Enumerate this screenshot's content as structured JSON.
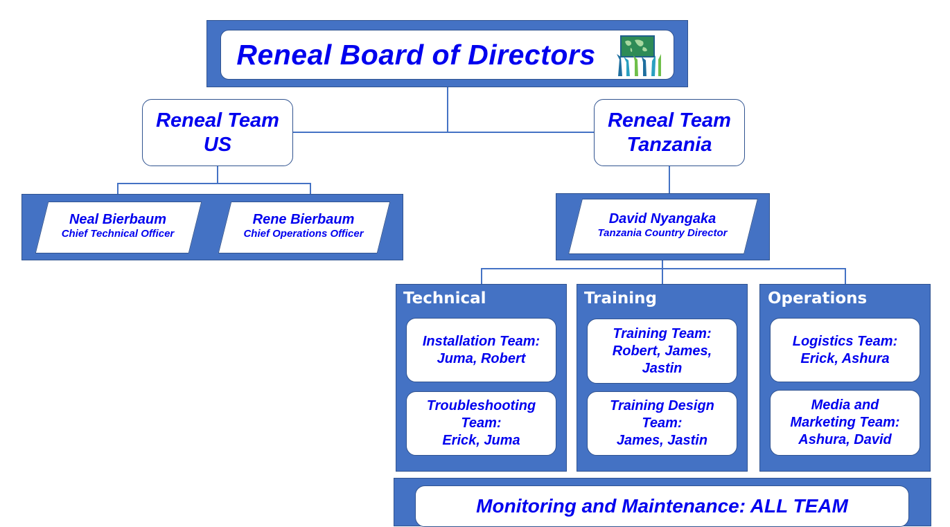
{
  "board": {
    "title": "Reneal Board of Directors",
    "logo_icon": "world-map-hands-icon"
  },
  "teams": {
    "us": {
      "label": "Reneal Team\nUS"
    },
    "tanzania": {
      "label": "Reneal Team\nTanzania"
    }
  },
  "us_people": [
    {
      "name": "Neal Bierbaum",
      "role": "Chief Technical Officer"
    },
    {
      "name": "Rene Bierbaum",
      "role": "Chief Operations Officer"
    }
  ],
  "tz_director": {
    "name": "David Nyangaka",
    "role": "Tanzania Country Director"
  },
  "departments": [
    {
      "title": "Technical",
      "teams": [
        "Installation Team:\nJuma, Robert",
        "Troubleshooting\nTeam:\nErick, Juma"
      ]
    },
    {
      "title": "Training",
      "teams": [
        "Training Team:\nRobert, James,\nJastin",
        "Training Design\nTeam:\nJames, Jastin"
      ]
    },
    {
      "title": "Operations",
      "teams": [
        "Logistics Team:\nErick, Ashura",
        "Media and\nMarketing Team:\nAshura, David"
      ]
    }
  ],
  "monitoring": {
    "label": "Monitoring and Maintenance: ALL TEAM"
  },
  "colors": {
    "box_blue": "#4472c4",
    "text_blue": "#0000ee",
    "line_blue": "#4472c4"
  }
}
